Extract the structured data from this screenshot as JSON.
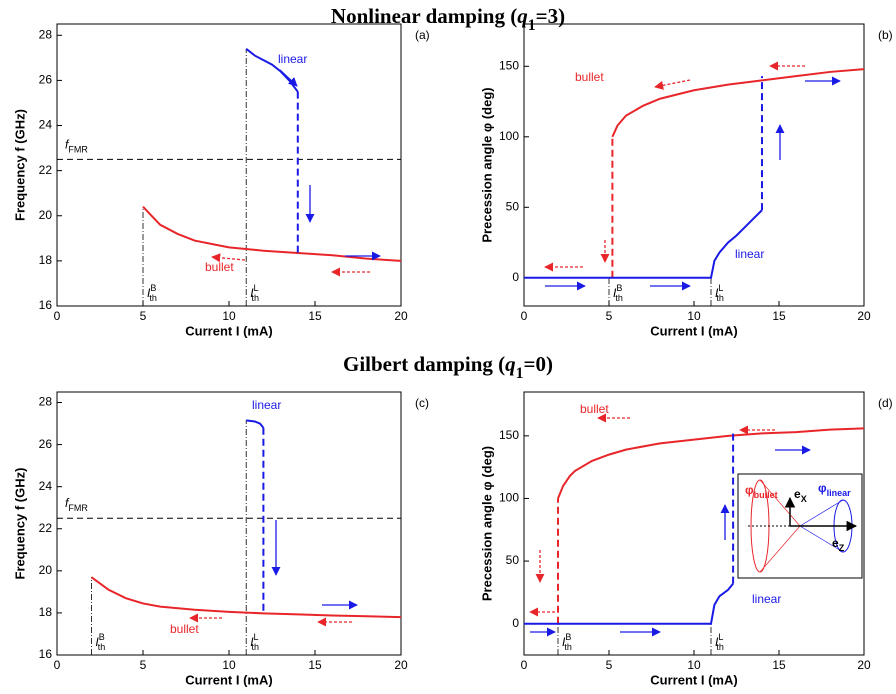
{
  "sections": [
    {
      "text": "Nonlinear damping (",
      "var": "q",
      "sub": "1",
      "after": "=3)"
    },
    {
      "text": "Gilbert damping (",
      "var": "q",
      "sub": "1",
      "after": "=0)"
    }
  ],
  "chart_data": [
    {
      "type": "line",
      "panel": "(a)",
      "xlabel": "Current I (mA)",
      "ylabel": "Frequency f (GHz)",
      "xlim": [
        0,
        20
      ],
      "ylim": [
        16,
        28.5
      ],
      "xticks": [
        0,
        5,
        10,
        15,
        20
      ],
      "yticks": [
        16,
        18,
        20,
        22,
        24,
        26,
        28
      ],
      "ref_line": {
        "value": 22.5,
        "label": "f",
        "sub": "FMR"
      },
      "thresholds": [
        {
          "value": 5,
          "label": "I",
          "sup": "B",
          "sub": "th"
        },
        {
          "value": 11,
          "label": "I",
          "sup": "L",
          "sub": "th"
        }
      ],
      "series": [
        {
          "name": "bullet",
          "color": "#e8262a",
          "x": [
            5,
            5.5,
            6,
            7,
            8,
            9,
            10,
            12,
            14,
            16,
            18,
            20
          ],
          "values": [
            20.4,
            20.0,
            19.6,
            19.2,
            18.9,
            18.75,
            18.6,
            18.45,
            18.35,
            18.25,
            18.1,
            18.0
          ]
        },
        {
          "name": "linear",
          "color": "#1a1ae6",
          "x": [
            11,
            11.5,
            12,
            12.5,
            13,
            13.5,
            14
          ],
          "values": [
            27.4,
            27.1,
            26.9,
            26.7,
            26.4,
            26.0,
            25.5
          ],
          "jump": {
            "x": [
              14,
              14
            ],
            "values": [
              25.5,
              18.3
            ]
          }
        }
      ]
    },
    {
      "type": "line",
      "panel": "(b)",
      "xlabel": "Current I (mA)",
      "ylabel": "Precession angle φ (deg)",
      "xlim": [
        0,
        20
      ],
      "ylim": [
        -20,
        180
      ],
      "xticks": [
        0,
        5,
        10,
        15,
        20
      ],
      "yticks": [
        0,
        50,
        100,
        150
      ],
      "thresholds": [
        {
          "value": 5,
          "label": "I",
          "sup": "B",
          "sub": "th"
        },
        {
          "value": 11,
          "label": "I",
          "sup": "L",
          "sub": "th"
        }
      ],
      "series": [
        {
          "name": "bullet",
          "color": "#e8262a",
          "x": [
            5.2,
            5.5,
            6,
            7,
            8,
            10,
            12,
            14,
            16,
            18,
            20
          ],
          "values": [
            100,
            108,
            115,
            122,
            127,
            133,
            137,
            140,
            143,
            146,
            148
          ],
          "jump": {
            "x": [
              5.2,
              5.2
            ],
            "values": [
              0,
              100
            ]
          }
        },
        {
          "name": "linear",
          "color": "#1a1ae6",
          "x": [
            0,
            11,
            11.2,
            11.5,
            12,
            12.5,
            13,
            13.5,
            14
          ],
          "values": [
            0,
            0,
            12,
            18,
            25,
            30,
            36,
            42,
            48
          ],
          "jump": {
            "x": [
              14,
              14
            ],
            "values": [
              48,
              143
            ]
          }
        }
      ]
    },
    {
      "type": "line",
      "panel": "(c)",
      "xlabel": "Current I (mA)",
      "ylabel": "Frequency f (GHz)",
      "xlim": [
        0,
        20
      ],
      "ylim": [
        16,
        28.5
      ],
      "xticks": [
        0,
        5,
        10,
        15,
        20
      ],
      "yticks": [
        16,
        18,
        20,
        22,
        24,
        26,
        28
      ],
      "ref_line": {
        "value": 22.5,
        "label": "f",
        "sub": "FMR"
      },
      "thresholds": [
        {
          "value": 2,
          "label": "I",
          "sup": "B",
          "sub": "th"
        },
        {
          "value": 11,
          "label": "I",
          "sup": "L",
          "sub": "th"
        }
      ],
      "series": [
        {
          "name": "bullet",
          "color": "#e8262a",
          "x": [
            2,
            2.5,
            3,
            4,
            5,
            6,
            8,
            10,
            12,
            14,
            16,
            18,
            20
          ],
          "values": [
            19.7,
            19.4,
            19.1,
            18.7,
            18.45,
            18.3,
            18.15,
            18.05,
            17.98,
            17.93,
            17.88,
            17.84,
            17.8
          ]
        },
        {
          "name": "linear",
          "color": "#1a1ae6",
          "x": [
            11,
            11.5,
            11.8,
            12
          ],
          "values": [
            27.15,
            27.1,
            27.0,
            26.8
          ],
          "jump": {
            "x": [
              12,
              12
            ],
            "values": [
              26.8,
              18.0
            ]
          }
        }
      ]
    },
    {
      "type": "line",
      "panel": "(d)",
      "xlabel": "Current I (mA)",
      "ylabel": "Precession angle φ (deg)",
      "xlim": [
        0,
        20
      ],
      "ylim": [
        -25,
        185
      ],
      "xticks": [
        0,
        5,
        10,
        15,
        20
      ],
      "yticks": [
        0,
        50,
        100,
        150
      ],
      "thresholds": [
        {
          "value": 2,
          "label": "I",
          "sup": "B",
          "sub": "th"
        },
        {
          "value": 11,
          "label": "I",
          "sup": "L",
          "sub": "th"
        }
      ],
      "series": [
        {
          "name": "bullet",
          "color": "#e8262a",
          "x": [
            2,
            2.3,
            2.7,
            3,
            4,
            5,
            6,
            8,
            10,
            12,
            14,
            16,
            18,
            20
          ],
          "values": [
            100,
            110,
            118,
            122,
            130,
            135,
            139,
            144,
            147,
            150,
            152,
            153,
            155,
            156
          ],
          "jump": {
            "x": [
              2,
              2
            ],
            "values": [
              0,
              100
            ]
          }
        },
        {
          "name": "linear",
          "color": "#1a1ae6",
          "x": [
            0,
            11,
            11.2,
            11.5,
            12,
            12.3
          ],
          "values": [
            0,
            0,
            15,
            22,
            27,
            32
          ],
          "jump": {
            "x": [
              12.3,
              12.3
            ],
            "values": [
              32,
              152
            ]
          }
        }
      ]
    }
  ],
  "inset": {
    "labels": [
      {
        "text": "φ",
        "sub": "bullet"
      },
      {
        "text": "e",
        "sub": "X"
      },
      {
        "text": "φ",
        "sub": "linear"
      },
      {
        "text": "e",
        "sub": "Z"
      }
    ]
  }
}
